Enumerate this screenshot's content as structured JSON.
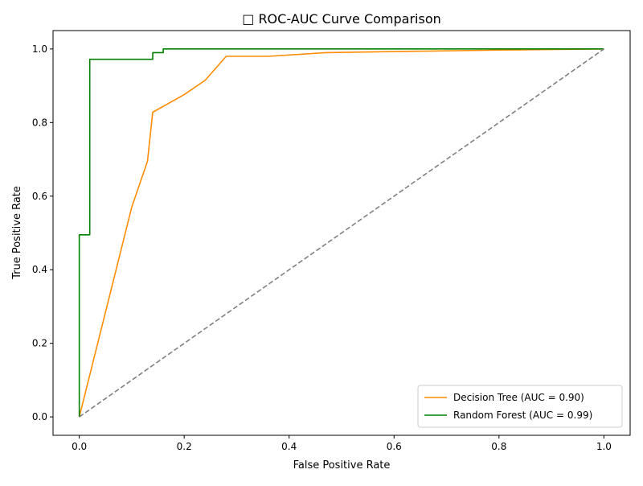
{
  "chart_data": {
    "type": "line",
    "title": "□ ROC-AUC Curve Comparison",
    "xlabel": "False Positive Rate",
    "ylabel": "True Positive Rate",
    "xlim": [
      -0.05,
      1.05
    ],
    "ylim": [
      -0.05,
      1.05
    ],
    "xticks": [
      0.0,
      0.2,
      0.4,
      0.6,
      0.8,
      1.0
    ],
    "yticks": [
      0.0,
      0.2,
      0.4,
      0.6,
      0.8,
      1.0
    ],
    "xtick_labels": [
      "0.0",
      "0.2",
      "0.4",
      "0.6",
      "0.8",
      "1.0"
    ],
    "ytick_labels": [
      "0.0",
      "0.2",
      "0.4",
      "0.6",
      "0.8",
      "1.0"
    ],
    "grid": false,
    "legend_position": "lower-right",
    "series": [
      {
        "name": "Decision Tree (AUC = 0.90)",
        "color": "#ff8c00",
        "style": "solid",
        "x": [
          0.0,
          0.1,
          0.13,
          0.14,
          0.2,
          0.24,
          0.28,
          0.36,
          0.47,
          0.6,
          0.8,
          1.0
        ],
        "y": [
          0.0,
          0.57,
          0.695,
          0.828,
          0.876,
          0.915,
          0.98,
          0.98,
          0.99,
          0.993,
          0.997,
          1.0
        ]
      },
      {
        "name": "Random Forest (AUC = 0.99)",
        "color": "#008000",
        "style": "step",
        "x": [
          0.0,
          0.0,
          0.02,
          0.02,
          0.14,
          0.14,
          0.16,
          0.16,
          1.0
        ],
        "y": [
          0.0,
          0.495,
          0.495,
          0.972,
          0.972,
          0.99,
          0.99,
          1.0,
          1.0
        ]
      },
      {
        "color": "#808080",
        "style": "dashed",
        "x": [
          0.0,
          1.0
        ],
        "y": [
          0.0,
          1.0
        ]
      }
    ]
  }
}
